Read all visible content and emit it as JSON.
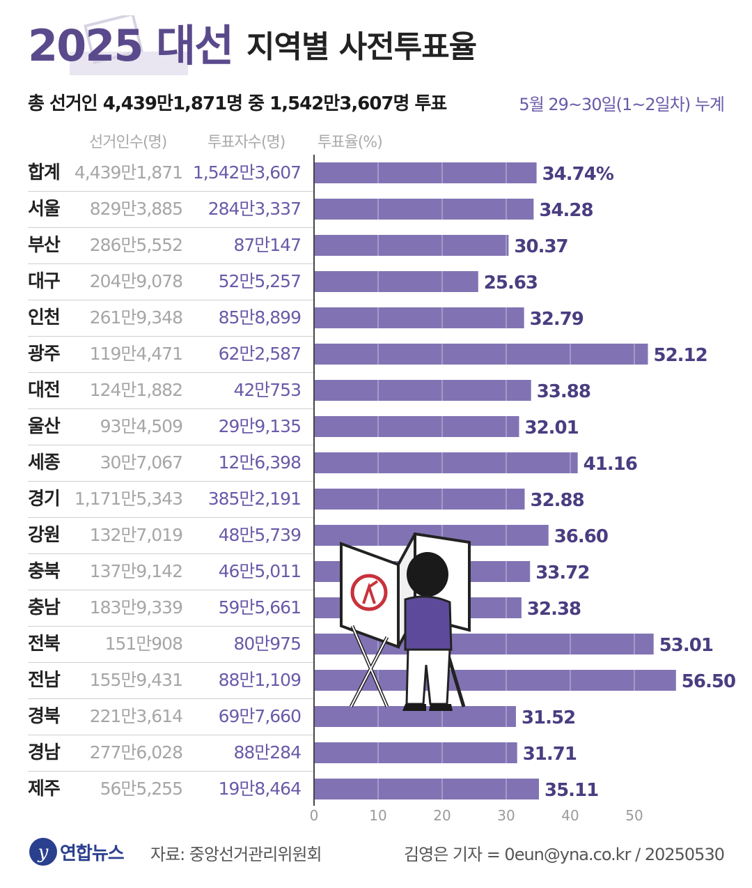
{
  "title": {
    "year": "2025 대선",
    "main": "지역별 사전투표율"
  },
  "subtitle": "총 선거인 4,439만1,871명 중 1,542만3,607명 투표",
  "period": "5월 29~30일(1~2일차) 누계",
  "headers": {
    "voters": "선거인수(명)",
    "voted": "투표자수(명)",
    "rate": "투표율(%)"
  },
  "footer": {
    "logo": "연합뉴스",
    "source": "자료: 중앙선거관리위원회",
    "credit": "김영은 기자 = 0eun@yna.co.kr / 20250530"
  },
  "colors": {
    "bar": "#8173b3",
    "value": "#4a3d80",
    "accent": "#5a4a8c"
  },
  "chart_data": {
    "type": "bar",
    "orientation": "horizontal",
    "categories": [
      "합계",
      "서울",
      "부산",
      "대구",
      "인천",
      "광주",
      "대전",
      "울산",
      "세종",
      "경기",
      "강원",
      "충북",
      "충남",
      "전북",
      "전남",
      "경북",
      "경남",
      "제주"
    ],
    "values": [
      34.74,
      34.28,
      30.37,
      25.63,
      32.79,
      52.12,
      33.88,
      32.01,
      41.16,
      32.88,
      36.6,
      33.72,
      32.38,
      53.01,
      56.5,
      31.52,
      31.71,
      35.11
    ],
    "value_labels": [
      "34.74%",
      "34.28",
      "30.37",
      "25.63",
      "32.79",
      "52.12",
      "33.88",
      "32.01",
      "41.16",
      "32.88",
      "36.60",
      "33.72",
      "32.38",
      "53.01",
      "56.50",
      "31.52",
      "31.71",
      "35.11"
    ],
    "voters": [
      "4,439만1,871",
      "829만3,885",
      "286만5,552",
      "204만9,078",
      "261만9,348",
      "119만4,471",
      "124만1,882",
      "93만4,509",
      "30만7,067",
      "1,171만5,343",
      "132만7,019",
      "137만9,142",
      "183만9,339",
      "151만908",
      "155만9,431",
      "221만3,614",
      "277만6,028",
      "56만5,255"
    ],
    "voted": [
      "1,542만3,607",
      "284만3,337",
      "87만147",
      "52만5,257",
      "85만8,899",
      "62만2,587",
      "42만753",
      "29만9,135",
      "12만6,398",
      "385만2,191",
      "48만5,739",
      "46만5,011",
      "59만5,661",
      "80만975",
      "88만1,109",
      "69만7,660",
      "88만284",
      "19만8,464"
    ],
    "xlim": [
      0,
      60
    ],
    "ticks": [
      0,
      10,
      20,
      30,
      40,
      50
    ],
    "ylabel": "",
    "xlabel": "투표율(%)"
  }
}
